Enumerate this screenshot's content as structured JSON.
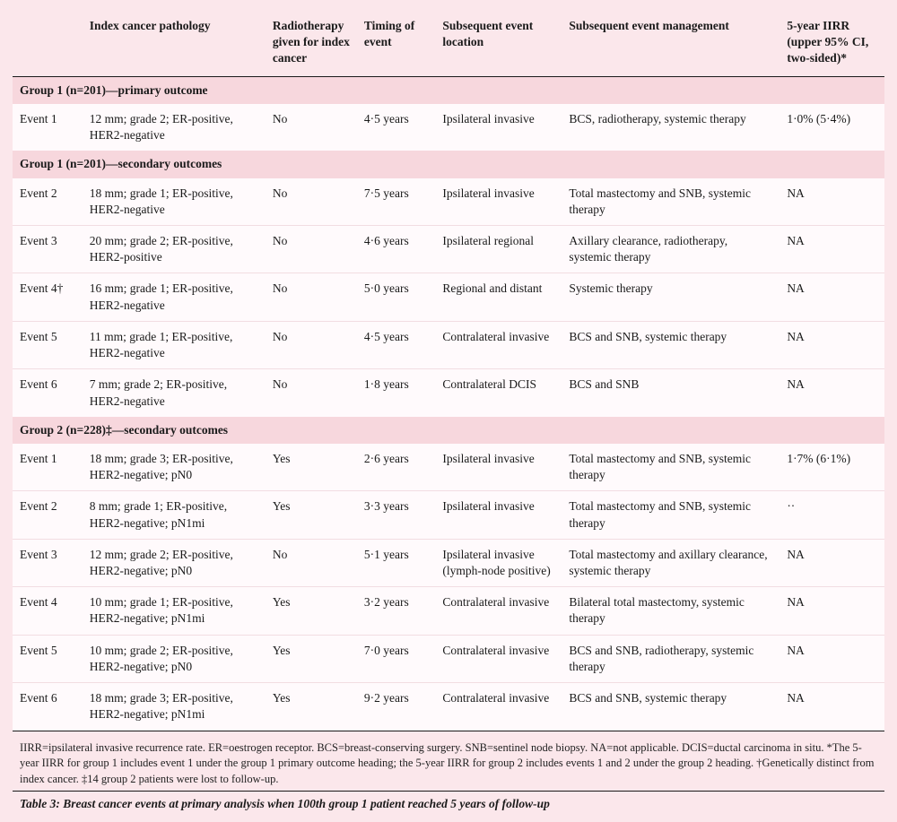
{
  "colors": {
    "page_bg": "#fbe7eb",
    "group_bg": "#f7d7dd",
    "row_bg": "#fffafc",
    "row_divider": "#f2dde2",
    "rule": "#1a1a1a",
    "text": "#1a1a1a"
  },
  "typography": {
    "font_family": "Georgia, 'Times New Roman', serif",
    "body_size_pt": 10,
    "header_weight": 600
  },
  "columns": {
    "event": "",
    "pathology": "Index cancer pathology",
    "radiotherapy": "Radiotherapy given for index cancer",
    "timing": "Timing of event",
    "location": "Subsequent event location",
    "management": "Subsequent event management",
    "iirr": "5-year IIRR (upper 95% CI, two-sided)*"
  },
  "groups": [
    {
      "title": "Group 1 (n=201)—primary outcome",
      "rows": [
        {
          "event": "Event 1",
          "pathology": "12 mm; grade 2; ER-positive, HER2-negative",
          "radiotherapy": "No",
          "timing": "4·5 years",
          "location": "Ipsilateral invasive",
          "management": "BCS, radiotherapy, systemic therapy",
          "iirr": "1·0% (5·4%)"
        }
      ]
    },
    {
      "title": "Group 1 (n=201)—secondary outcomes",
      "rows": [
        {
          "event": "Event 2",
          "pathology": "18 mm; grade 1; ER-positive, HER2-negative",
          "radiotherapy": "No",
          "timing": "7·5 years",
          "location": "Ipsilateral invasive",
          "management": "Total mastectomy and SNB, systemic therapy",
          "iirr": "NA"
        },
        {
          "event": "Event 3",
          "pathology": "20 mm; grade 2; ER-positive, HER2-positive",
          "radiotherapy": "No",
          "timing": "4·6 years",
          "location": "Ipsilateral regional",
          "management": "Axillary clearance, radiotherapy, systemic therapy",
          "iirr": "NA"
        },
        {
          "event": "Event 4†",
          "pathology": "16 mm; grade 1; ER-positive, HER2-negative",
          "radiotherapy": "No",
          "timing": "5·0 years",
          "location": "Regional and distant",
          "management": "Systemic therapy",
          "iirr": "NA"
        },
        {
          "event": "Event 5",
          "pathology": "11 mm; grade 1; ER-positive, HER2-negative",
          "radiotherapy": "No",
          "timing": "4·5 years",
          "location": "Contralateral invasive",
          "management": "BCS and SNB, systemic therapy",
          "iirr": "NA"
        },
        {
          "event": "Event 6",
          "pathology": "7 mm; grade 2; ER-positive, HER2-negative",
          "radiotherapy": "No",
          "timing": "1·8 years",
          "location": "Contralateral DCIS",
          "management": "BCS and SNB",
          "iirr": "NA"
        }
      ]
    },
    {
      "title": "Group 2 (n=228)‡—secondary outcomes",
      "rows": [
        {
          "event": "Event 1",
          "pathology": "18 mm; grade 3; ER-positive, HER2-negative; pN0",
          "radiotherapy": "Yes",
          "timing": "2·6 years",
          "location": "Ipsilateral invasive",
          "management": "Total mastectomy and SNB, systemic therapy",
          "iirr": "1·7% (6·1%)"
        },
        {
          "event": "Event 2",
          "pathology": "8 mm; grade 1; ER-positive, HER2-negative; pN1mi",
          "radiotherapy": "Yes",
          "timing": "3·3 years",
          "location": "Ipsilateral invasive",
          "management": "Total mastectomy and SNB, systemic therapy",
          "iirr": "··"
        },
        {
          "event": "Event 3",
          "pathology": "12 mm; grade 2; ER-positive, HER2-negative; pN0",
          "radiotherapy": "No",
          "timing": "5·1 years",
          "location": "Ipsilateral invasive (lymph-node positive)",
          "management": "Total mastectomy and axillary clearance, systemic therapy",
          "iirr": "NA"
        },
        {
          "event": "Event 4",
          "pathology": "10 mm; grade 1; ER-positive, HER2-negative; pN1mi",
          "radiotherapy": "Yes",
          "timing": "3·2 years",
          "location": "Contralateral invasive",
          "management": "Bilateral total mastectomy, systemic therapy",
          "iirr": "NA"
        },
        {
          "event": "Event 5",
          "pathology": "10 mm; grade 2; ER-positive, HER2-negative; pN0",
          "radiotherapy": "Yes",
          "timing": "7·0 years",
          "location": "Contralateral invasive",
          "management": "BCS and SNB, radiotherapy, systemic therapy",
          "iirr": "NA"
        },
        {
          "event": "Event 6",
          "pathology": "18 mm; grade 3; ER-positive, HER2-negative; pN1mi",
          "radiotherapy": "Yes",
          "timing": "9·2 years",
          "location": "Contralateral invasive",
          "management": "BCS and SNB, systemic therapy",
          "iirr": "NA"
        }
      ]
    }
  ],
  "footnote": "IIRR=ipsilateral invasive recurrence rate. ER=oestrogen receptor. BCS=breast-conserving surgery. SNB=sentinel node biopsy. NA=not applicable. DCIS=ductal carcinoma in situ. *The 5-year IIRR for group 1 includes event 1 under the group 1 primary outcome heading; the 5-year IIRR for group 2 includes events 1 and 2 under the group 2 heading. †Genetically distinct from index cancer. ‡14 group 2 patients were lost to follow-up.",
  "caption_label": "Table 3:",
  "caption_text": " Breast cancer events at primary analysis when 100th group 1 patient reached 5 years of follow-up"
}
